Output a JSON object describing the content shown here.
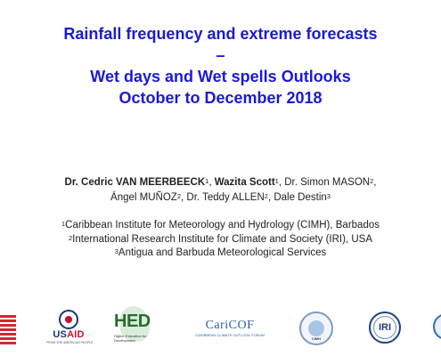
{
  "title": {
    "line1": "Rainfall frequency and extreme forecasts",
    "line2": "–",
    "line3": "Wet days and Wet spells Outlooks",
    "line4": "October to December 2018"
  },
  "authors": {
    "a1_name": "Dr. Cedric VAN MEERBEECK",
    "a1_sup": "1",
    "a2_name": "Wazita Scott",
    "a2_sup": "1",
    "a3_name": "Dr. Simon MASON",
    "a3_sup": "2",
    "a4_name": "Ángel MUÑOZ",
    "a4_sup": "2",
    "a5_name": "Dr. Teddy ALLEN",
    "a5_sup": "2",
    "a6_name": "Dale Destin",
    "a6_sup": "3"
  },
  "affiliations": [
    {
      "sup": "1",
      "text": "Caribbean Institute for Meteorology and Hydrology (CIMH), Barbados"
    },
    {
      "sup": "2",
      "text": "International Research Institute for Climate and Society (IRI), USA"
    },
    {
      "sup": "3",
      "text": "Antigua and Barbuda Meteorological Services"
    }
  ],
  "logos": {
    "usaid": {
      "word_a": "US",
      "word_b": "AID",
      "tagline": "FROM THE AMERICAN PEOPLE"
    },
    "hed": {
      "word": "HED",
      "tagline": "Higher Education for Development"
    },
    "caricof": {
      "word": "CariCOF",
      "tagline": "CARIBBEAN CLIMATE OUTLOOK FORUM"
    },
    "cimh": {
      "word": "CIMH"
    },
    "iri": {
      "word": "IRI"
    }
  },
  "colors": {
    "title": "#1a1ad6",
    "body_text": "#222222",
    "usaid_blue": "#17347a",
    "usaid_red": "#c8102e",
    "hed_green": "#2a6b2d",
    "caricof_blue": "#2b5ea8",
    "iri_blue": "#1b3f86"
  }
}
